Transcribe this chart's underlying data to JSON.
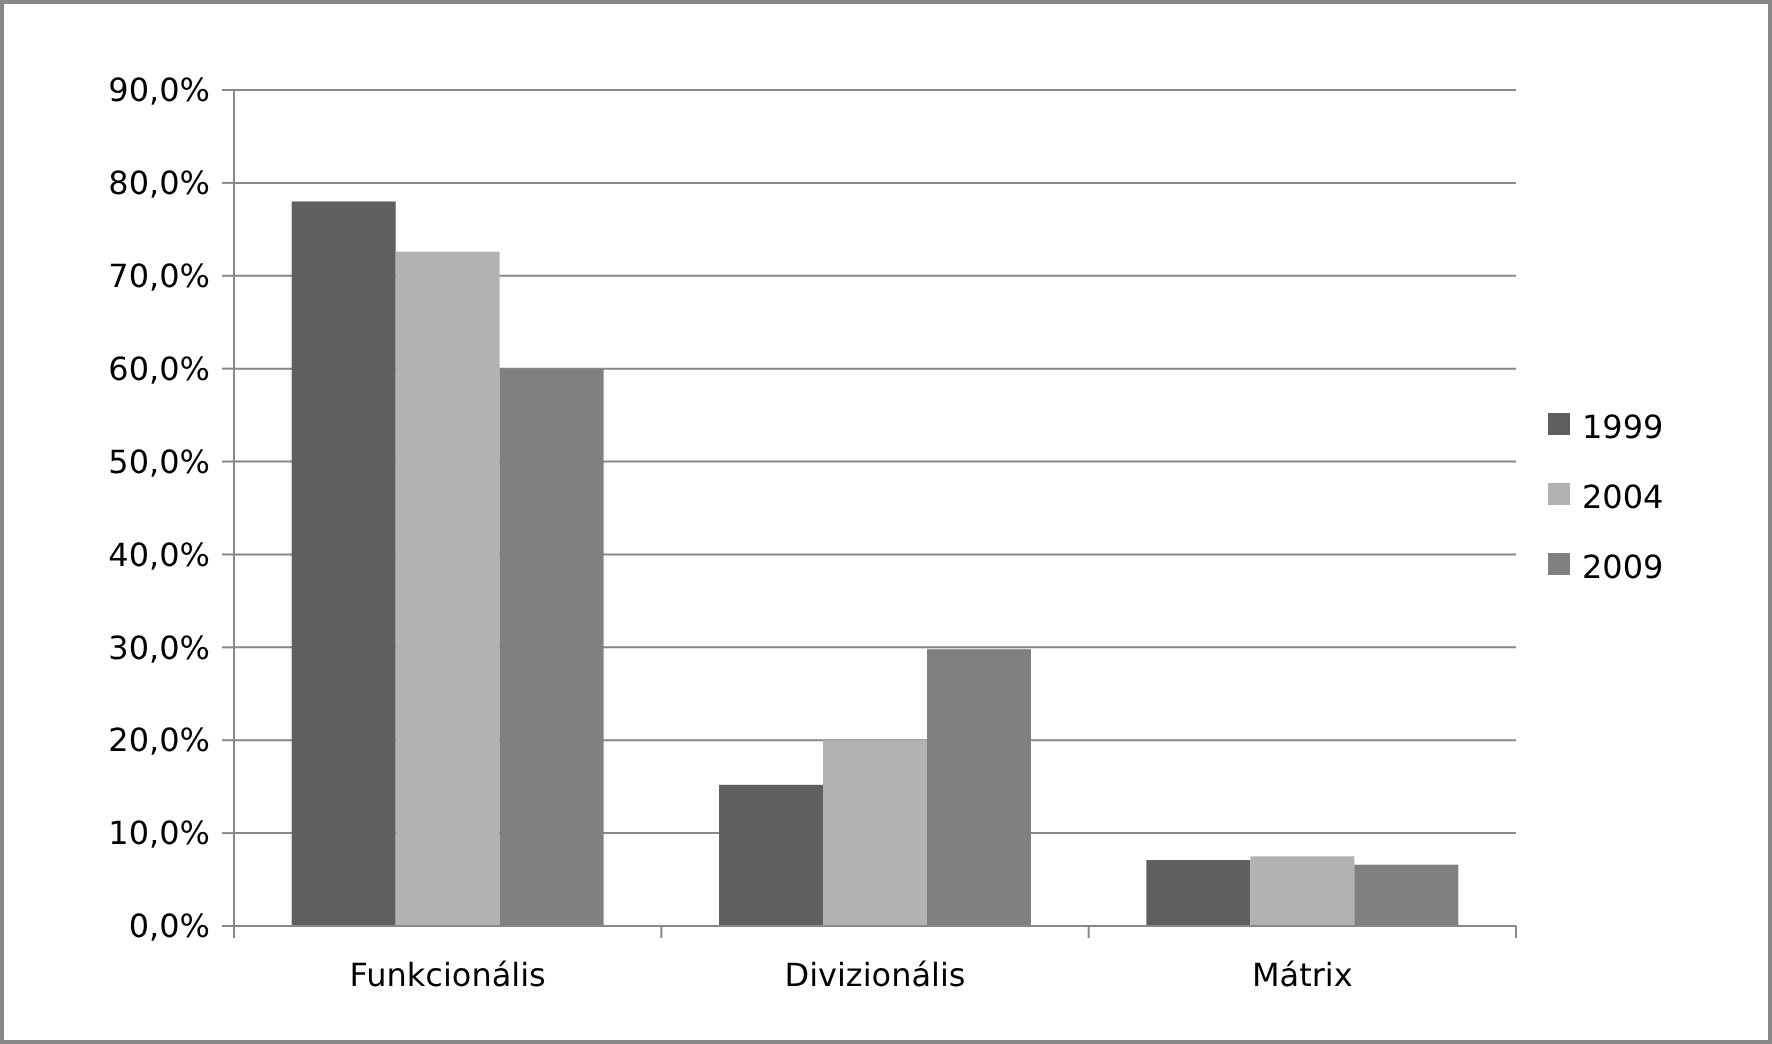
{
  "chart_data": {
    "type": "bar",
    "categories": [
      "Funkcionális",
      "Divizionális",
      "Mátrix"
    ],
    "series": [
      {
        "name": "1999",
        "color": "#5f5f5f",
        "values": [
          78,
          15.2,
          7.1
        ]
      },
      {
        "name": "2004",
        "color": "#b2b2b2",
        "values": [
          72.6,
          20,
          7.5
        ]
      },
      {
        "name": "2009",
        "color": "#808080",
        "values": [
          60,
          29.8,
          6.6
        ]
      }
    ],
    "ylim": [
      0,
      90
    ],
    "yticks": [
      {
        "value": 0,
        "label": "0,0%"
      },
      {
        "value": 10,
        "label": "10,0%"
      },
      {
        "value": 20,
        "label": "20,0%"
      },
      {
        "value": 30,
        "label": "30,0%"
      },
      {
        "value": 40,
        "label": "40,0%"
      },
      {
        "value": 50,
        "label": "50,0%"
      },
      {
        "value": 60,
        "label": "60,0%"
      },
      {
        "value": 70,
        "label": "70,0%"
      },
      {
        "value": 80,
        "label": "80,0%"
      },
      {
        "value": 90,
        "label": "90,0%"
      }
    ],
    "grid": "y",
    "legend": "right"
  }
}
